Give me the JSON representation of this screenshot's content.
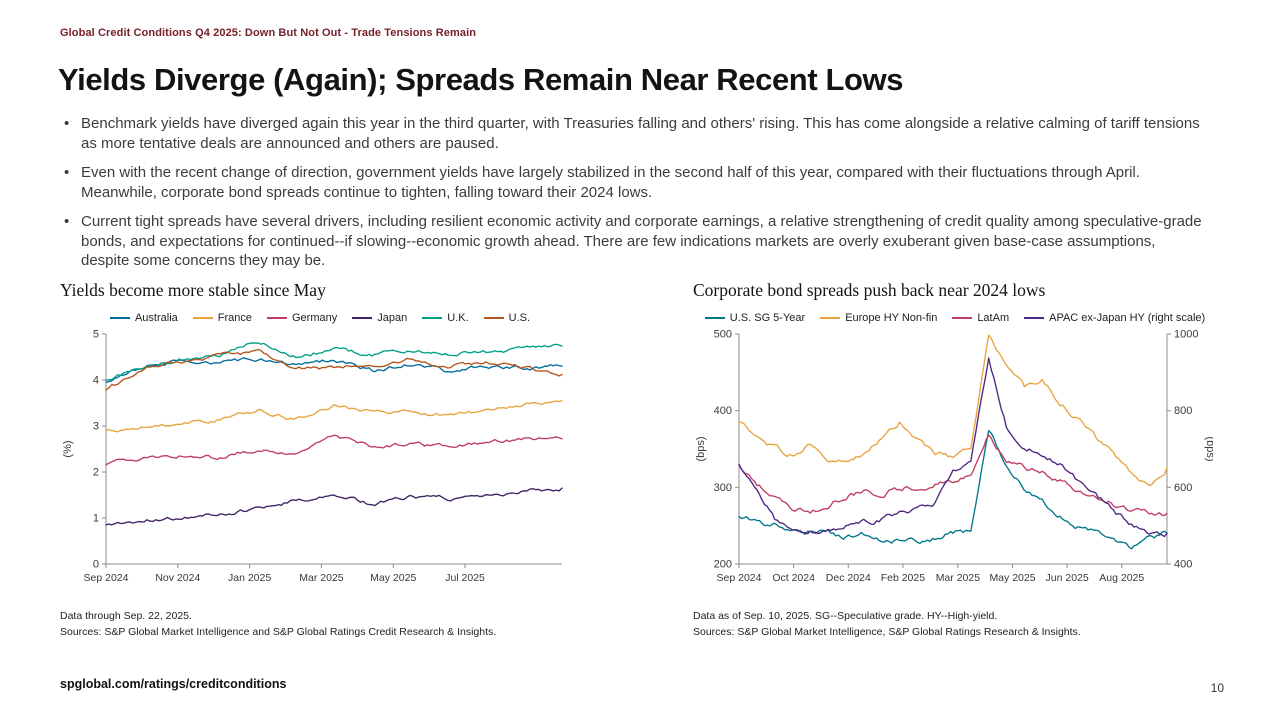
{
  "page": {
    "eyebrow": "Global Credit Conditions Q4 2025: Down But Not Out - Trade Tensions Remain",
    "title": "Yields Diverge (Again); Spreads Remain Near Recent Lows",
    "bullets": [
      "Benchmark yields have diverged again this year in the third quarter, with Treasuries falling and others' rising. This has come alongside a relative calming of tariff tensions as more tentative deals are announced and others are paused.",
      "Even with the recent change of direction, government yields have largely stabilized in the second half of this year, compared with their fluctuations through April. Meanwhile, corporate bond spreads continue to tighten, falling toward their 2024 lows.",
      "Current tight spreads have several drivers, including resilient economic activity and corporate earnings, a relative strengthening of credit quality among speculative-grade bonds, and expectations for continued--if slowing--economic growth ahead. There are few indications markets are overly exuberant given base-case assumptions, despite some concerns they may be."
    ],
    "footer_link": "spglobal.com/ratings/creditconditions",
    "page_number": "10"
  },
  "chart_data": [
    {
      "type": "line",
      "title": "Yields become more stable since May",
      "ylabel": "(%)",
      "ylim": [
        0,
        5
      ],
      "yticks": [
        0,
        1,
        2,
        3,
        4,
        5
      ],
      "x_total_months": 12.7,
      "xticks": [
        {
          "label": "Sep 2024",
          "month": 0
        },
        {
          "label": "Nov 2024",
          "month": 2
        },
        {
          "label": "Jan 2025",
          "month": 4
        },
        {
          "label": "Mar 2025",
          "month": 6
        },
        {
          "label": "May 2025",
          "month": 8
        },
        {
          "label": "Jul 2025",
          "month": 10
        }
      ],
      "grid": false,
      "legend_position": "top",
      "noise": 0.035,
      "series": [
        {
          "name": "Australia",
          "color": "#006d9c",
          "values": [
            3.95,
            4.3,
            4.45,
            4.4,
            4.45,
            4.35,
            4.45,
            4.2,
            4.35,
            4.2,
            4.3,
            4.25,
            4.3
          ]
        },
        {
          "name": "France",
          "color": "#e8a33d",
          "values": [
            2.9,
            3.0,
            3.05,
            3.15,
            3.35,
            3.15,
            3.45,
            3.3,
            3.3,
            3.25,
            3.35,
            3.45,
            3.55
          ]
        },
        {
          "name": "Germany",
          "color": "#c13d62",
          "values": [
            2.15,
            2.3,
            2.35,
            2.3,
            2.5,
            2.4,
            2.75,
            2.55,
            2.6,
            2.55,
            2.65,
            2.7,
            2.72
          ]
        },
        {
          "name": "Japan",
          "color": "#3d2462",
          "values": [
            0.85,
            0.95,
            1.0,
            1.07,
            1.2,
            1.38,
            1.5,
            1.3,
            1.45,
            1.42,
            1.5,
            1.57,
            1.65
          ]
        },
        {
          "name": "U.K.",
          "color": "#00a087",
          "values": [
            4.0,
            4.3,
            4.45,
            4.55,
            4.85,
            4.5,
            4.67,
            4.55,
            4.65,
            4.55,
            4.6,
            4.7,
            4.74
          ]
        },
        {
          "name": "U.S.",
          "color": "#b5541c",
          "values": [
            3.78,
            4.25,
            4.4,
            4.55,
            4.62,
            4.25,
            4.28,
            4.32,
            4.45,
            4.3,
            4.4,
            4.25,
            4.12
          ]
        }
      ],
      "notes": [
        "Data through Sep. 22, 2025.",
        "Sources: S&P Global Market Intelligence and S&P Global Ratings Credit Research & Insights."
      ]
    },
    {
      "type": "line",
      "title": "Corporate bond spreads push back near 2024 lows",
      "ylabel": "(bps)",
      "ylabel_right": "(bps)",
      "ylim": [
        200,
        500
      ],
      "yticks": [
        200,
        300,
        400,
        500
      ],
      "ylim_right": [
        400,
        1000
      ],
      "yticks_right": [
        400,
        600,
        800,
        1000
      ],
      "x_total_months": 12.3,
      "xticks": [
        {
          "label": "Sep 2024",
          "month": 0
        },
        {
          "label": "Oct 2024",
          "month": 1.57
        },
        {
          "label": "Dec 2024",
          "month": 3.14
        },
        {
          "label": "Feb 2025",
          "month": 4.71
        },
        {
          "label": "Mar 2025",
          "month": 6.29
        },
        {
          "label": "May 2025",
          "month": 7.86
        },
        {
          "label": "Jun 2025",
          "month": 9.43
        },
        {
          "label": "Aug 2025",
          "month": 11
        }
      ],
      "grid": false,
      "legend_position": "top",
      "noise": 3,
      "series": [
        {
          "name": "U.S. SG 5-Year",
          "color": "#00788a",
          "values": [
            262,
            256,
            250,
            247,
            243,
            240,
            236,
            239,
            234,
            230,
            228,
            234,
            240,
            244,
            378,
            330,
            298,
            280,
            264,
            250,
            240,
            228,
            222,
            232,
            240
          ]
        },
        {
          "name": "Europe HY Non-fin",
          "color": "#e8a33d",
          "values": [
            385,
            368,
            352,
            342,
            355,
            338,
            330,
            342,
            360,
            385,
            360,
            345,
            338,
            350,
            500,
            455,
            430,
            438,
            410,
            388,
            365,
            345,
            318,
            302,
            326
          ]
        },
        {
          "name": "LatAm",
          "color": "#c13d62",
          "values": [
            330,
            305,
            285,
            270,
            268,
            278,
            288,
            295,
            292,
            298,
            302,
            306,
            310,
            315,
            368,
            336,
            326,
            318,
            308,
            298,
            288,
            278,
            270,
            266,
            266
          ]
        },
        {
          "name": "APAC ex-Japan HY (right scale)",
          "color": "#4f2683",
          "axis": "right",
          "noise": 6,
          "values": [
            660,
            585,
            515,
            495,
            488,
            492,
            498,
            508,
            516,
            528,
            545,
            562,
            648,
            660,
            940,
            755,
            700,
            685,
            660,
            618,
            580,
            538,
            502,
            486,
            480
          ]
        }
      ],
      "notes": [
        "Data as of Sep. 10, 2025. SG--Speculative grade. HY--High-yield.",
        "Sources: S&P Global Market Intelligence, S&P Global Ratings Research & Insights."
      ]
    }
  ]
}
